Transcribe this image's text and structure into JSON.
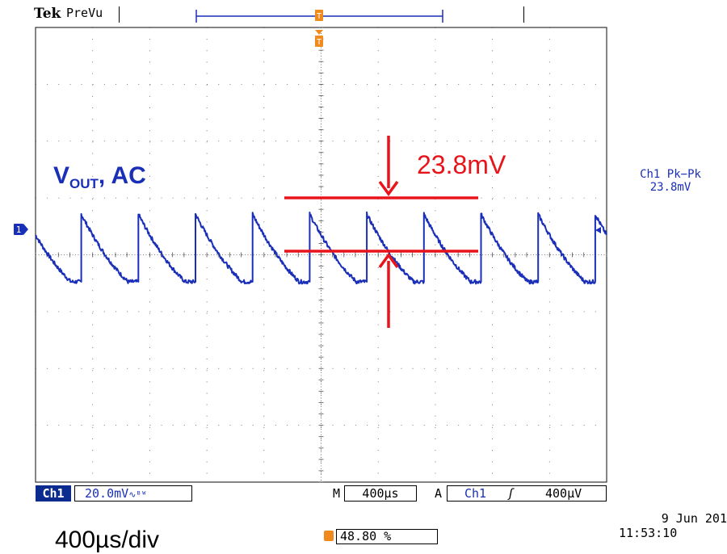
{
  "header": {
    "brand": "Tek",
    "mode": "PreVu"
  },
  "annotations": {
    "signal_label_main": "V",
    "signal_label_sub": "OUT",
    "signal_label_suffix": ", AC",
    "ripple_value": "23.8mV",
    "timebase_caption": "400µs/div"
  },
  "measurement": {
    "title": "Ch1 Pk−Pk",
    "value": "23.8mV"
  },
  "footer": {
    "channel": "Ch1",
    "channel_scale": "20.0mV",
    "coupling_symbol": "∿ᴮᵂ",
    "m_label": "M",
    "horizontal_scale": "400µs",
    "a_label": "A",
    "trigger_source": "Ch1",
    "trigger_edge": "ʃ",
    "trigger_level": "400µV",
    "trigger_position": "48.80 %",
    "date": "9 Jun  201",
    "time": "11:53:10"
  },
  "markers": {
    "channel_marker": "1",
    "trigger_marker": "T"
  },
  "colors": {
    "trace": "#1a2fb8",
    "annotation": "#e8141b",
    "trigger_marker": "#f08a1c",
    "grid": "#555555"
  },
  "chart_data": {
    "type": "line",
    "title": "",
    "xlabel": "400µs/div",
    "ylabel": "",
    "xlim": [
      -2000,
      2000
    ],
    "ylim": [
      -80,
      80
    ],
    "x_unit": "µs",
    "y_unit": "mV",
    "grid": true,
    "series": [
      {
        "name": "Ch1",
        "period_us": 400,
        "first_peak_us": -1680,
        "peak_mv": 14.3,
        "trough_mv": -9.5,
        "peak_to_peak_mv": 23.8,
        "x": [
          -2000,
          -1680,
          -1280,
          -880,
          -480,
          -80,
          320,
          720,
          1120,
          1520,
          1920,
          2000
        ],
        "y": [
          4.0,
          14.3,
          14.3,
          14.3,
          14.3,
          14.3,
          14.3,
          14.3,
          14.3,
          14.3,
          14.3,
          -9.5
        ]
      }
    ]
  }
}
